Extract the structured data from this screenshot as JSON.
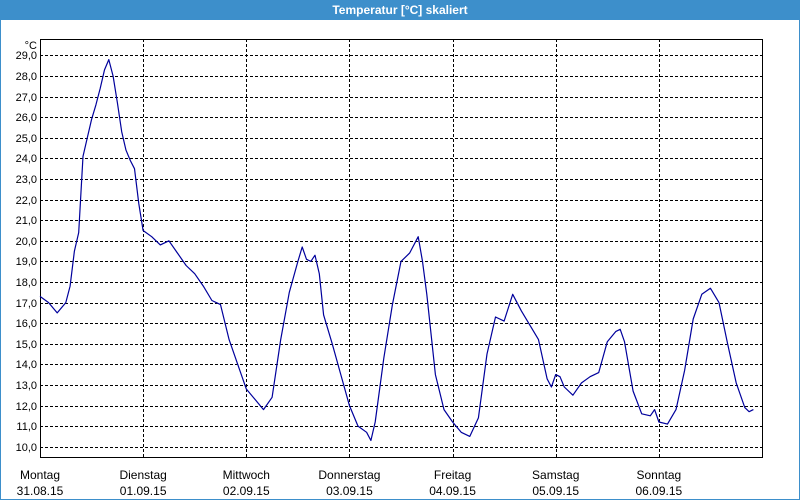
{
  "colors": {
    "title_bar": "#3d8fcb",
    "title_text": "#ffffff",
    "line": "#00009c",
    "grid": "#000000",
    "background": "#ffffff"
  },
  "chart_data": {
    "type": "line",
    "title": "Temperatur [°C] skaliert",
    "ylabel": "°C",
    "xlabel": "",
    "xlim": [
      "31.08.15 00:00",
      "07.09.15 00:00"
    ],
    "ylim": [
      9.5,
      29.8
    ],
    "grid": true,
    "grid_style": "dashed",
    "legend": "none",
    "yticks": [
      10,
      11,
      12,
      13,
      14,
      15,
      16,
      17,
      18,
      19,
      20,
      21,
      22,
      23,
      24,
      25,
      26,
      27,
      28,
      29
    ],
    "ytick_labels": [
      "10,0",
      "11,0",
      "12,0",
      "13,0",
      "14,0",
      "15,0",
      "16,0",
      "17,0",
      "18,0",
      "19,0",
      "20,0",
      "21,0",
      "22,0",
      "23,0",
      "24,0",
      "25,0",
      "26,0",
      "27,0",
      "28,0",
      "29,0"
    ],
    "xticks": [
      "31.08.15 00:00",
      "01.09.15 00:00",
      "02.09.15 00:00",
      "03.09.15 00:00",
      "04.09.15 00:00",
      "05.09.15 00:00",
      "06.09.15 00:00"
    ],
    "xtick_labels": [
      {
        "day": "Montag",
        "date": "31.08.15"
      },
      {
        "day": "Dienstag",
        "date": "01.09.15"
      },
      {
        "day": "Mittwoch",
        "date": "02.09.15"
      },
      {
        "day": "Donnerstag",
        "date": "03.09.15"
      },
      {
        "day": "Freitag",
        "date": "04.09.15"
      },
      {
        "day": "Samstag",
        "date": "05.09.15"
      },
      {
        "day": "Sonntag",
        "date": "06.09.15"
      }
    ],
    "series": [
      {
        "x": [
          "31.08.15 00:00",
          "31.08.15 02:00",
          "31.08.15 04:00",
          "31.08.15 06:00",
          "31.08.15 07:00",
          "31.08.15 08:00",
          "31.08.15 09:00",
          "31.08.15 10:00",
          "31.08.15 11:00",
          "31.08.15 12:00",
          "31.08.15 13:00",
          "31.08.15 14:00",
          "31.08.15 15:00",
          "31.08.15 16:00",
          "31.08.15 17:00",
          "31.08.15 18:00",
          "31.08.15 19:00",
          "31.08.15 20:00",
          "31.08.15 21:00",
          "31.08.15 22:00",
          "31.08.15 23:00",
          "01.09.15 00:00",
          "01.09.15 02:00",
          "01.09.15 04:00",
          "01.09.15 06:00",
          "01.09.15 08:00",
          "01.09.15 10:00",
          "01.09.15 12:00",
          "01.09.15 14:00",
          "01.09.15 16:00",
          "01.09.15 18:00",
          "01.09.15 20:00",
          "01.09.15 22:00",
          "02.09.15 00:00",
          "02.09.15 02:00",
          "02.09.15 04:00",
          "02.09.15 06:00",
          "02.09.15 08:00",
          "02.09.15 10:00",
          "02.09.15 12:00",
          "02.09.15 13:00",
          "02.09.15 14:00",
          "02.09.15 15:00",
          "02.09.15 16:00",
          "02.09.15 17:00",
          "02.09.15 18:00",
          "02.09.15 20:00",
          "02.09.15 22:00",
          "03.09.15 00:00",
          "03.09.15 02:00",
          "03.09.15 04:00",
          "03.09.15 05:00",
          "03.09.15 06:00",
          "03.09.15 08:00",
          "03.09.15 10:00",
          "03.09.15 12:00",
          "03.09.15 14:00",
          "03.09.15 16:00",
          "03.09.15 17:00",
          "03.09.15 18:00",
          "03.09.15 20:00",
          "03.09.15 22:00",
          "04.09.15 00:00",
          "04.09.15 02:00",
          "04.09.15 04:00",
          "04.09.15 06:00",
          "04.09.15 08:00",
          "04.09.15 10:00",
          "04.09.15 12:00",
          "04.09.15 14:00",
          "04.09.15 16:00",
          "04.09.15 18:00",
          "04.09.15 20:00",
          "04.09.15 22:00",
          "04.09.15 23:00",
          "05.09.15 00:00",
          "05.09.15 01:00",
          "05.09.15 02:00",
          "05.09.15 04:00",
          "05.09.15 06:00",
          "05.09.15 08:00",
          "05.09.15 10:00",
          "05.09.15 12:00",
          "05.09.15 14:00",
          "05.09.15 15:00",
          "05.09.15 16:00",
          "05.09.15 18:00",
          "05.09.15 20:00",
          "05.09.15 22:00",
          "05.09.15 23:00",
          "06.09.15 00:00",
          "06.09.15 02:00",
          "06.09.15 04:00",
          "06.09.15 06:00",
          "06.09.15 08:00",
          "06.09.15 10:00",
          "06.09.15 12:00",
          "06.09.15 14:00",
          "06.09.15 16:00",
          "06.09.15 18:00",
          "06.09.15 20:00",
          "06.09.15 21:00",
          "06.09.15 22:00"
        ],
        "y": [
          17.3,
          17.0,
          16.5,
          17.0,
          17.8,
          19.5,
          20.4,
          24.1,
          25.0,
          25.9,
          26.6,
          27.4,
          28.3,
          28.8,
          28.0,
          26.7,
          25.3,
          24.4,
          23.9,
          23.5,
          21.8,
          20.5,
          20.2,
          19.8,
          20.0,
          19.4,
          18.8,
          18.4,
          17.8,
          17.1,
          16.9,
          15.2,
          14.0,
          12.8,
          12.3,
          11.8,
          12.4,
          15.2,
          17.5,
          19.0,
          19.7,
          19.1,
          19.0,
          19.3,
          18.4,
          16.4,
          15.0,
          13.5,
          12.0,
          11.0,
          10.7,
          10.3,
          11.2,
          14.3,
          16.9,
          19.0,
          19.4,
          20.2,
          19.0,
          17.4,
          13.5,
          11.8,
          11.2,
          10.7,
          10.5,
          11.4,
          14.5,
          16.3,
          16.1,
          17.4,
          16.6,
          15.9,
          15.2,
          13.3,
          12.9,
          13.5,
          13.4,
          12.9,
          12.5,
          13.1,
          13.4,
          13.6,
          15.1,
          15.6,
          15.7,
          15.1,
          12.7,
          11.6,
          11.5,
          11.8,
          11.2,
          11.1,
          11.8,
          13.7,
          16.2,
          17.4,
          17.7,
          17.0,
          15.0,
          13.1,
          11.9,
          11.7,
          11.8
        ]
      }
    ]
  }
}
